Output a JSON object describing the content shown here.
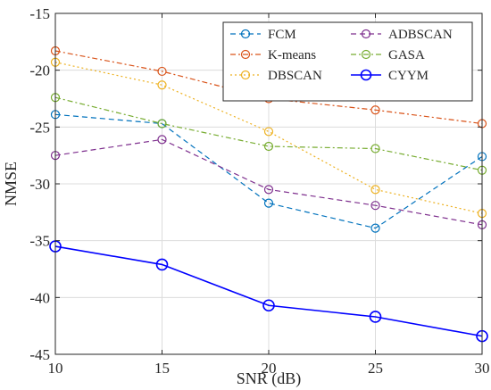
{
  "chart_data": {
    "type": "line",
    "xlabel": "SNR (dB)",
    "ylabel": "NMSE",
    "x": [
      10,
      15,
      20,
      25,
      30
    ],
    "xlim": [
      10,
      30
    ],
    "ylim": [
      -45,
      -15
    ],
    "xticks": [
      10,
      15,
      20,
      25,
      30
    ],
    "yticks": [
      -15,
      -20,
      -25,
      -30,
      -35,
      -40,
      -45
    ],
    "grid": true,
    "legend_position": "top-right",
    "series": [
      {
        "name": "FCM",
        "color": "#0072bd",
        "dash": "6,4",
        "values": [
          -23.9,
          -24.7,
          -31.7,
          -33.9,
          -27.6
        ]
      },
      {
        "name": "K-means",
        "color": "#d95319",
        "dash": "6,3,2,3",
        "values": [
          -18.3,
          -20.1,
          -22.5,
          -23.5,
          -24.7
        ]
      },
      {
        "name": "DBSCAN",
        "color": "#edb120",
        "dash": "2,3",
        "values": [
          -19.3,
          -21.3,
          -25.4,
          -30.5,
          -32.6
        ]
      },
      {
        "name": "ADBSCAN",
        "color": "#7e2f8e",
        "dash": "6,4",
        "values": [
          -27.5,
          -26.1,
          -30.5,
          -31.9,
          -33.6
        ]
      },
      {
        "name": "GASA",
        "color": "#77ac30",
        "dash": "6,3,2,3",
        "values": [
          -22.4,
          -24.7,
          -26.7,
          -26.9,
          -28.8
        ]
      },
      {
        "name": "CYYM",
        "color": "#0000ff",
        "dash": "",
        "values": [
          -35.5,
          -37.1,
          -40.7,
          -41.7,
          -43.4
        ]
      }
    ]
  }
}
